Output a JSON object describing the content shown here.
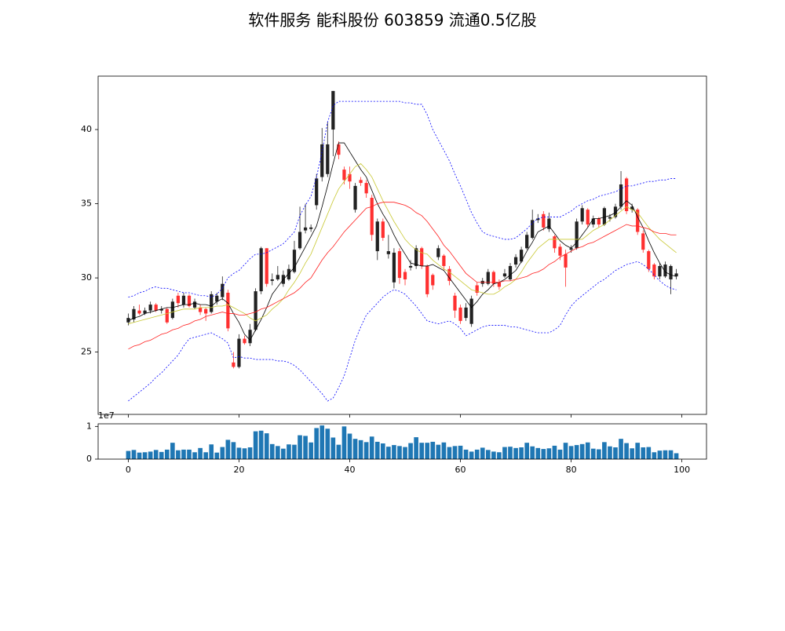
{
  "chart_data": [
    {
      "type": "candlestick",
      "title": "软件服务 能科股份 603859 流通0.5亿股",
      "x": [
        0,
        1,
        2,
        3,
        4,
        5,
        6,
        7,
        8,
        9,
        10,
        11,
        12,
        13,
        14,
        15,
        16,
        17,
        18,
        19,
        20,
        21,
        22,
        23,
        24,
        25,
        26,
        27,
        28,
        29,
        30,
        31,
        32,
        33,
        34,
        35,
        36,
        37,
        38,
        39,
        40,
        41,
        42,
        43,
        44,
        45,
        46,
        47,
        48,
        49,
        50,
        51,
        52,
        53,
        54,
        55,
        56,
        57,
        58,
        59,
        60,
        61,
        62,
        63,
        64,
        65,
        66,
        67,
        68,
        69,
        70,
        71,
        72,
        73,
        74,
        75,
        76,
        77,
        78,
        79,
        80,
        81,
        82,
        83,
        84,
        85,
        86,
        87,
        88,
        89,
        90,
        91,
        92,
        93,
        94,
        95,
        96,
        97,
        98,
        99
      ],
      "open": [
        27.0,
        27.2,
        27.8,
        27.6,
        27.8,
        28.2,
        27.8,
        27.9,
        27.3,
        28.8,
        28.2,
        28.8,
        28.0,
        28.0,
        27.9,
        27.7,
        28.4,
        28.7,
        29.0,
        24.3,
        24.0,
        25.9,
        25.6,
        26.5,
        29.1,
        32.0,
        29.8,
        29.9,
        29.6,
        29.9,
        30.4,
        32.0,
        33.2,
        33.3,
        34.9,
        36.8,
        37.0,
        40.0,
        39.0,
        37.3,
        37.0,
        34.6,
        36.6,
        36.4,
        35.4,
        31.8,
        33.8,
        31.6,
        29.7,
        31.8,
        30.4,
        30.7,
        30.8,
        32.0,
        30.8,
        30.2,
        31.4,
        31.5,
        30.6,
        28.8,
        28.0,
        27.3,
        26.9,
        29.5,
        29.6,
        29.6,
        30.4,
        29.7,
        30.1,
        29.9,
        30.9,
        31.1,
        32.0,
        32.7,
        33.9,
        34.3,
        33.3,
        32.8,
        32.1,
        31.6,
        31.9,
        32.0,
        33.8,
        34.6,
        33.6,
        34.0,
        33.6,
        34.0,
        34.1,
        34.8,
        36.7,
        34.6,
        34.6,
        33.0,
        31.8,
        30.9,
        30.1,
        30.1,
        29.9,
        30.1
      ],
      "high": [
        27.6,
        28.1,
        28.2,
        28.0,
        28.4,
        28.3,
        28.1,
        28.0,
        28.6,
        29.0,
        29.0,
        28.9,
        28.6,
        28.2,
        28.0,
        29.1,
        29.0,
        30.1,
        29.2,
        25.0,
        26.2,
        26.1,
        26.9,
        29.3,
        32.1,
        32.0,
        30.3,
        30.8,
        30.5,
        30.9,
        32.5,
        34.8,
        35.0,
        33.6,
        37.0,
        40.1,
        40.5,
        42.6,
        39.2,
        37.5,
        37.5,
        36.4,
        36.8,
        36.6,
        35.6,
        34.0,
        34.0,
        32.9,
        32.0,
        32.0,
        30.6,
        31.2,
        32.2,
        32.1,
        30.9,
        30.3,
        32.2,
        31.6,
        30.8,
        29.0,
        28.2,
        28.3,
        28.8,
        29.7,
        30.0,
        30.6,
        30.5,
        29.9,
        30.6,
        31.0,
        31.6,
        32.1,
        33.1,
        34.6,
        34.3,
        34.5,
        34.4,
        32.9,
        32.3,
        31.9,
        32.2,
        34.0,
        34.9,
        34.7,
        34.2,
        34.1,
        34.8,
        34.3,
        35.0,
        37.2,
        36.8,
        35.0,
        34.7,
        33.2,
        31.9,
        31.0,
        31.0,
        31.1,
        30.9,
        30.6
      ],
      "low": [
        26.8,
        27.0,
        27.5,
        27.5,
        27.6,
        27.7,
        27.6,
        26.9,
        27.2,
        28.0,
        28.0,
        28.0,
        27.9,
        27.5,
        27.1,
        27.6,
        28.2,
        28.5,
        26.4,
        23.9,
        23.9,
        25.5,
        25.4,
        26.4,
        28.9,
        29.4,
        29.5,
        29.8,
        29.4,
        29.8,
        30.3,
        31.9,
        33.0,
        33.1,
        34.6,
        36.5,
        36.8,
        38.2,
        38.0,
        36.3,
        36.0,
        34.4,
        36.2,
        35.4,
        32.5,
        31.2,
        32.5,
        31.3,
        29.3,
        29.6,
        29.5,
        30.5,
        30.6,
        30.6,
        28.7,
        29.2,
        31.2,
        30.5,
        29.5,
        27.3,
        26.9,
        27.1,
        26.7,
        28.8,
        29.4,
        29.5,
        29.4,
        29.2,
        30.0,
        29.8,
        30.7,
        31.0,
        31.9,
        32.6,
        33.7,
        33.2,
        33.1,
        31.7,
        31.2,
        29.4,
        31.7,
        31.9,
        33.6,
        33.4,
        33.4,
        33.4,
        33.5,
        33.8,
        34.0,
        34.6,
        34.3,
        34.4,
        32.9,
        31.7,
        30.4,
        29.9,
        29.9,
        30.0,
        28.9,
        29.9
      ],
      "close": [
        27.3,
        27.9,
        27.6,
        27.8,
        28.2,
        27.8,
        27.9,
        27.0,
        28.4,
        28.3,
        28.8,
        28.1,
        28.4,
        27.7,
        27.6,
        28.9,
        28.8,
        29.6,
        26.6,
        24.0,
        25.9,
        25.6,
        26.5,
        29.1,
        32.0,
        29.6,
        29.9,
        30.2,
        30.2,
        30.6,
        31.9,
        33.1,
        33.4,
        33.4,
        36.7,
        39.0,
        39.0,
        42.6,
        38.3,
        36.6,
        36.5,
        36.2,
        36.4,
        35.7,
        32.9,
        33.8,
        32.7,
        31.8,
        31.7,
        30.0,
        29.9,
        30.8,
        32.0,
        30.8,
        28.9,
        29.5,
        32.0,
        30.8,
        29.8,
        27.8,
        27.1,
        28.0,
        28.6,
        29.0,
        29.8,
        30.4,
        29.6,
        29.4,
        30.3,
        30.8,
        31.4,
        31.9,
        32.9,
        33.9,
        34.0,
        33.4,
        34.0,
        32.0,
        31.5,
        30.7,
        32.0,
        33.8,
        34.7,
        33.6,
        34.0,
        33.6,
        34.7,
        34.1,
        34.8,
        36.3,
        34.5,
        34.8,
        33.1,
        31.9,
        30.6,
        30.1,
        30.8,
        30.9,
        30.8,
        30.3
      ],
      "up_color": "#222222",
      "down_color": "#ff3030",
      "lines": [
        {
          "color": "#000000",
          "dashed": false,
          "values": [
            27.1,
            27.3,
            27.4,
            27.6,
            27.7,
            27.8,
            27.9,
            28.0,
            28.0,
            28.1,
            28.2,
            28.2,
            28.3,
            28.2,
            28.2,
            28.1,
            28.4,
            28.6,
            28.3,
            27.6,
            27.0,
            26.2,
            25.8,
            26.5,
            27.2,
            28.0,
            28.9,
            29.4,
            29.9,
            30.3,
            30.7,
            31.4,
            32.1,
            32.8,
            33.5,
            34.8,
            36.2,
            37.7,
            39.1,
            39.1,
            38.5,
            37.9,
            37.3,
            36.8,
            35.9,
            35.0,
            34.3,
            33.7,
            32.9,
            32.2,
            31.6,
            31.0,
            30.9,
            30.8,
            30.8,
            30.9,
            30.7,
            30.5,
            30.0,
            29.5,
            29.0,
            28.5,
            28.0,
            28.4,
            28.9,
            29.2,
            29.6,
            29.7,
            29.9,
            30.2,
            30.5,
            31.1,
            31.8,
            32.4,
            33.1,
            33.3,
            33.5,
            33.0,
            32.5,
            32.2,
            32.0,
            32.4,
            32.9,
            33.4,
            34.0,
            34.0,
            34.1,
            34.2,
            34.4,
            34.8,
            35.2,
            34.9,
            34.1,
            33.4,
            32.5,
            31.7,
            31.0,
            30.4,
            30.2,
            30.1
          ]
        },
        {
          "color": "#c8c832",
          "dashed": false,
          "values": [
            26.9,
            27.0,
            27.1,
            27.2,
            27.3,
            27.4,
            27.5,
            27.6,
            27.7,
            27.8,
            27.9,
            27.9,
            27.9,
            28.0,
            28.0,
            28.0,
            28.1,
            28.1,
            28.2,
            28.0,
            27.8,
            27.6,
            27.3,
            27.1,
            27.3,
            27.5,
            27.9,
            28.2,
            28.6,
            29.2,
            29.7,
            30.3,
            31.0,
            31.6,
            32.5,
            33.4,
            34.3,
            35.2,
            36.0,
            36.5,
            37.0,
            37.5,
            37.7,
            37.3,
            36.8,
            36.0,
            35.2,
            34.5,
            33.8,
            33.2,
            32.6,
            32.2,
            31.9,
            31.7,
            31.6,
            31.2,
            30.9,
            30.6,
            30.4,
            30.1,
            29.8,
            29.5,
            29.2,
            29.1,
            29.0,
            28.9,
            28.9,
            29.1,
            29.4,
            29.6,
            29.9,
            30.4,
            31.0,
            31.5,
            32.0,
            32.3,
            32.6,
            32.6,
            32.6,
            32.6,
            32.6,
            32.6,
            32.6,
            32.9,
            33.2,
            33.4,
            33.6,
            33.9,
            34.2,
            34.5,
            34.8,
            34.6,
            34.4,
            33.9,
            33.4,
            33.0,
            32.6,
            32.3,
            32.0,
            31.7
          ]
        },
        {
          "color": "#ff2020",
          "dashed": false,
          "values": [
            25.2,
            25.4,
            25.5,
            25.7,
            25.8,
            26.0,
            26.2,
            26.3,
            26.5,
            26.6,
            26.8,
            26.9,
            27.1,
            27.2,
            27.4,
            27.5,
            27.6,
            27.7,
            27.6,
            27.6,
            27.5,
            27.5,
            27.6,
            27.7,
            27.9,
            28.0,
            28.2,
            28.4,
            28.6,
            28.8,
            29.0,
            29.3,
            29.7,
            30.0,
            30.6,
            31.2,
            31.7,
            32.1,
            32.6,
            33.1,
            33.5,
            33.9,
            34.3,
            34.7,
            34.8,
            35.0,
            35.1,
            35.1,
            35.1,
            35.0,
            34.9,
            34.7,
            34.4,
            34.2,
            33.8,
            33.3,
            32.8,
            32.2,
            31.8,
            31.3,
            30.8,
            30.3,
            30.0,
            29.7,
            29.7,
            29.7,
            29.7,
            29.7,
            29.8,
            29.8,
            29.9,
            30.0,
            30.1,
            30.3,
            30.4,
            30.6,
            30.9,
            31.1,
            31.4,
            31.6,
            31.8,
            32.0,
            32.1,
            32.3,
            32.4,
            32.6,
            32.8,
            33.0,
            33.2,
            33.4,
            33.6,
            33.5,
            33.5,
            33.4,
            33.3,
            33.1,
            33.0,
            33.0,
            32.9,
            32.9
          ]
        },
        {
          "color": "#0000ff",
          "dashed": true,
          "values": [
            28.7,
            28.8,
            29.0,
            29.1,
            29.3,
            29.4,
            29.3,
            29.3,
            29.2,
            29.1,
            29.0,
            29.0,
            28.9,
            28.8,
            28.8,
            28.7,
            28.9,
            29.3,
            30.0,
            30.3,
            30.5,
            30.9,
            31.3,
            31.6,
            31.6,
            31.7,
            31.9,
            32.1,
            32.3,
            32.7,
            33.1,
            34.2,
            34.9,
            35.5,
            36.8,
            38.5,
            40.5,
            41.6,
            41.9,
            41.9,
            41.9,
            41.9,
            41.9,
            41.9,
            41.9,
            41.9,
            41.9,
            41.9,
            41.9,
            41.9,
            41.8,
            41.8,
            41.7,
            41.7,
            41.0,
            40.0,
            39.3,
            38.6,
            37.9,
            37.0,
            36.2,
            35.3,
            34.4,
            33.7,
            33.1,
            32.9,
            32.8,
            32.7,
            32.6,
            32.6,
            32.7,
            33.0,
            33.3,
            33.7,
            34.0,
            34.1,
            34.1,
            34.1,
            34.1,
            34.3,
            34.5,
            34.8,
            35.0,
            35.2,
            35.3,
            35.5,
            35.6,
            35.7,
            35.8,
            36.0,
            36.2,
            36.2,
            36.3,
            36.4,
            36.5,
            36.5,
            36.6,
            36.6,
            36.7,
            36.7
          ]
        },
        {
          "color": "#0000ff",
          "dashed": true,
          "values": [
            21.7,
            22.0,
            22.3,
            22.6,
            22.9,
            23.3,
            23.6,
            24.0,
            24.4,
            24.8,
            25.4,
            25.9,
            26.0,
            26.1,
            26.2,
            26.3,
            26.1,
            25.9,
            25.6,
            24.6,
            24.7,
            24.6,
            24.6,
            24.5,
            24.5,
            24.5,
            24.5,
            24.4,
            24.4,
            24.3,
            24.1,
            23.8,
            23.4,
            23.0,
            22.6,
            22.2,
            21.7,
            21.9,
            22.6,
            23.4,
            24.6,
            25.8,
            26.7,
            27.5,
            27.9,
            28.3,
            28.7,
            29.0,
            29.2,
            29.1,
            28.9,
            28.5,
            28.1,
            27.6,
            27.1,
            27.0,
            26.9,
            27.0,
            27.1,
            26.9,
            26.6,
            26.1,
            26.3,
            26.5,
            26.7,
            26.8,
            26.8,
            26.8,
            26.8,
            26.7,
            26.7,
            26.6,
            26.5,
            26.4,
            26.3,
            26.3,
            26.3,
            26.5,
            26.8,
            27.5,
            28.1,
            28.5,
            28.8,
            29.1,
            29.4,
            29.7,
            29.9,
            30.2,
            30.5,
            30.7,
            30.9,
            31.0,
            31.1,
            30.9,
            30.6,
            30.2,
            29.8,
            29.5,
            29.3,
            29.2
          ]
        }
      ],
      "xlim": [
        -5.45,
        104.45
      ],
      "ylim": [
        20.8,
        43.6
      ],
      "yticks": [
        25,
        30,
        35,
        40
      ]
    },
    {
      "type": "bar",
      "values": [
        2500000,
        2800000,
        2000000,
        2100000,
        2300000,
        2800000,
        2200000,
        2900000,
        5000000,
        2700000,
        2900000,
        2900000,
        2100000,
        3400000,
        2100000,
        4500000,
        2000000,
        3700000,
        5900000,
        5200000,
        3500000,
        3300000,
        3600000,
        8500000,
        8700000,
        7900000,
        4600000,
        4000000,
        3200000,
        4500000,
        4400000,
        7300000,
        7100000,
        5100000,
        9500000,
        10300000,
        9300000,
        6600000,
        4400000,
        10000000,
        7800000,
        6200000,
        5800000,
        5200000,
        6900000,
        5300000,
        4800000,
        3800000,
        4300000,
        4000000,
        3700000,
        4900000,
        6700000,
        5000000,
        5000000,
        5300000,
        4400000,
        5100000,
        3700000,
        4000000,
        4100000,
        2900000,
        2300000,
        2900000,
        3500000,
        2800000,
        2300000,
        2100000,
        3700000,
        3800000,
        3400000,
        3600000,
        5000000,
        3900000,
        3400000,
        3100000,
        3300000,
        4100000,
        2900000,
        5000000,
        4000000,
        4300000,
        4600000,
        5100000,
        3200000,
        3000000,
        5200000,
        3900000,
        3600000,
        6200000,
        4900000,
        3300000,
        5000000,
        3600000,
        3700000,
        2100000,
        2600000,
        2700000,
        2700000,
        1800000
      ],
      "color": "#1f77b4",
      "xlim": [
        -5.45,
        104.45
      ],
      "ylim": [
        0,
        10800000
      ],
      "yticks": [
        0,
        {
          "value": 10000000,
          "label": "1"
        }
      ],
      "offset_label": "1e7",
      "xticks": [
        0,
        20,
        40,
        60,
        80,
        100
      ]
    }
  ]
}
